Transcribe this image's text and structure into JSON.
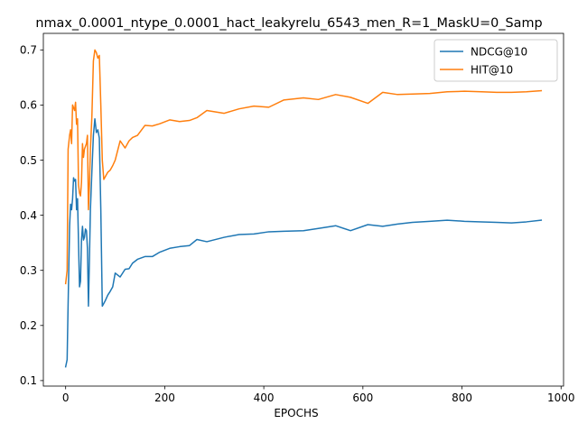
{
  "chart_data": {
    "type": "line",
    "title": "nmax_0.0001_ntype_0.0001_hact_leakyrelu_6543_men_R=1_MaskU=0_Samp",
    "xlabel": "EPOCHS",
    "ylabel": "",
    "xlim": [
      -45,
      1005
    ],
    "ylim": [
      0.09,
      0.73
    ],
    "xticks": [
      0,
      200,
      400,
      600,
      800,
      1000
    ],
    "yticks": [
      0.1,
      0.2,
      0.3,
      0.4,
      0.5,
      0.6,
      0.7
    ],
    "grid": false,
    "legend_position": "top-right",
    "series": [
      {
        "name": "NDCG@10",
        "color": "#1f77b4",
        "x": [
          0,
          3,
          5,
          8,
          10,
          12,
          14,
          16,
          18,
          20,
          22,
          24,
          26,
          28,
          30,
          32,
          34,
          36,
          38,
          40,
          42,
          44,
          46,
          48,
          50,
          53,
          56,
          59,
          62,
          65,
          68,
          71,
          74,
          77,
          80,
          85,
          90,
          95,
          100,
          110,
          120,
          128,
          135,
          145,
          160,
          175,
          190,
          210,
          230,
          250,
          265,
          285,
          320,
          350,
          380,
          410,
          440,
          480,
          510,
          545,
          575,
          610,
          640,
          670,
          700,
          735,
          770,
          805,
          840,
          870,
          900,
          930,
          960
        ],
        "y": [
          0.125,
          0.138,
          0.24,
          0.38,
          0.42,
          0.41,
          0.43,
          0.468,
          0.462,
          0.465,
          0.41,
          0.43,
          0.35,
          0.27,
          0.28,
          0.355,
          0.38,
          0.355,
          0.36,
          0.375,
          0.372,
          0.34,
          0.235,
          0.32,
          0.41,
          0.48,
          0.545,
          0.575,
          0.55,
          0.555,
          0.54,
          0.41,
          0.235,
          0.24,
          0.245,
          0.255,
          0.262,
          0.27,
          0.295,
          0.288,
          0.302,
          0.303,
          0.313,
          0.32,
          0.325,
          0.325,
          0.333,
          0.34,
          0.343,
          0.345,
          0.356,
          0.352,
          0.36,
          0.365,
          0.366,
          0.37,
          0.371,
          0.372,
          0.376,
          0.381,
          0.372,
          0.383,
          0.38,
          0.384,
          0.387,
          0.389,
          0.391,
          0.389,
          0.388,
          0.387,
          0.386,
          0.388,
          0.391
        ]
      },
      {
        "name": "HIT@10",
        "color": "#ff7f0e",
        "x": [
          0,
          3,
          5,
          8,
          10,
          12,
          14,
          16,
          18,
          20,
          22,
          24,
          26,
          28,
          30,
          32,
          34,
          36,
          38,
          40,
          42,
          44,
          46,
          48,
          50,
          53,
          56,
          59,
          62,
          65,
          68,
          71,
          74,
          77,
          80,
          85,
          90,
          95,
          100,
          110,
          120,
          128,
          135,
          145,
          160,
          175,
          190,
          210,
          230,
          250,
          265,
          285,
          320,
          350,
          380,
          410,
          440,
          480,
          510,
          545,
          575,
          610,
          640,
          670,
          700,
          735,
          770,
          805,
          840,
          870,
          900,
          930,
          960
        ],
        "y": [
          0.276,
          0.3,
          0.52,
          0.545,
          0.555,
          0.53,
          0.6,
          0.595,
          0.59,
          0.605,
          0.565,
          0.575,
          0.455,
          0.44,
          0.435,
          0.46,
          0.53,
          0.505,
          0.52,
          0.525,
          0.53,
          0.545,
          0.41,
          0.455,
          0.52,
          0.58,
          0.68,
          0.7,
          0.695,
          0.685,
          0.69,
          0.6,
          0.5,
          0.465,
          0.47,
          0.478,
          0.482,
          0.49,
          0.5,
          0.535,
          0.522,
          0.535,
          0.541,
          0.545,
          0.563,
          0.562,
          0.566,
          0.573,
          0.57,
          0.572,
          0.577,
          0.59,
          0.585,
          0.593,
          0.598,
          0.596,
          0.609,
          0.613,
          0.61,
          0.619,
          0.614,
          0.603,
          0.623,
          0.619,
          0.62,
          0.621,
          0.624,
          0.625,
          0.624,
          0.623,
          0.623,
          0.624,
          0.626
        ]
      }
    ]
  }
}
